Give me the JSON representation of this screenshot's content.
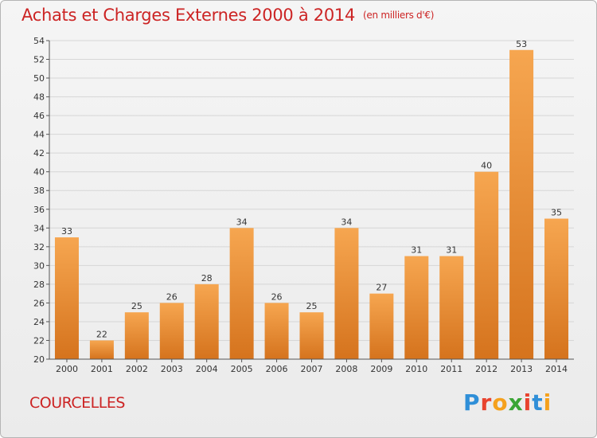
{
  "header": {
    "title": "Achats et Charges Externes 2000 à 2014",
    "unit": "(en milliers d'€)"
  },
  "commune": "COURCELLES",
  "logo": {
    "text": "Proxiti",
    "letter_colors": [
      "#2f8fd8",
      "#e8432e",
      "#f5a11d",
      "#3aa535",
      "#e8432e",
      "#2f8fd8",
      "#f5a11d"
    ]
  },
  "colors": {
    "bar_light": "#f6a650",
    "bar_dark": "#d5731d",
    "grid": "#d6d6d6",
    "title": "#cc2424"
  },
  "chart_data": {
    "type": "bar",
    "title": "Achats et Charges Externes 2000 à 2014",
    "subtitle": "(en milliers d'€)",
    "categories": [
      "2000",
      "2001",
      "2002",
      "2003",
      "2004",
      "2005",
      "2006",
      "2007",
      "2008",
      "2009",
      "2010",
      "2011",
      "2012",
      "2013",
      "2014"
    ],
    "values": [
      33,
      22,
      25,
      26,
      28,
      34,
      26,
      25,
      34,
      27,
      31,
      31,
      40,
      53,
      35
    ],
    "ylim": [
      20,
      54
    ],
    "ytick_step": 2,
    "grid": true,
    "data_labels": true
  }
}
